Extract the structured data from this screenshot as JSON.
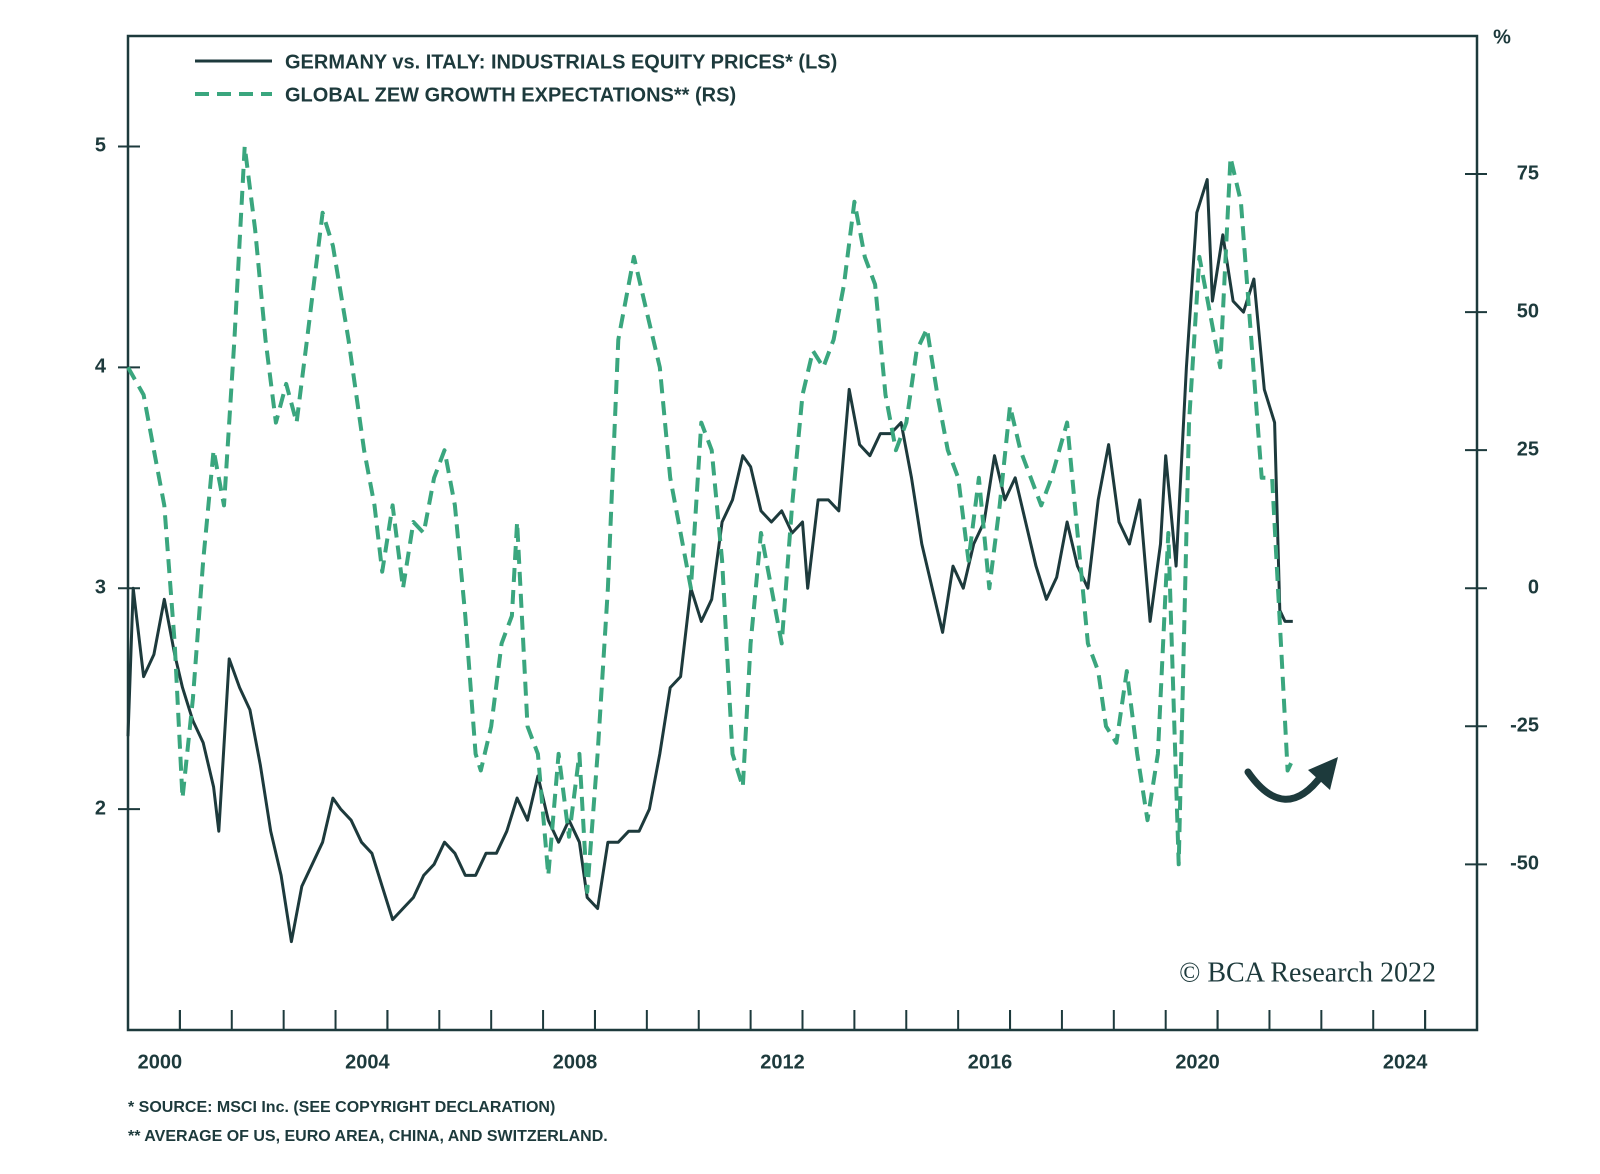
{
  "chart_data": {
    "type": "line",
    "y2label": "%",
    "legend_position": "upper left",
    "series": [
      {
        "name": "GERMANY vs. ITALY: INDUSTRIALS EQUITY PRICES* (LS)",
        "color": "#1d3a3c",
        "style": "solid",
        "axis": "y",
        "x": [
          1999.0,
          1999.1,
          1999.3,
          1999.5,
          1999.7,
          1999.9,
          2000.05,
          2000.25,
          2000.45,
          2000.65,
          2000.75,
          2000.95,
          2001.15,
          2001.35,
          2001.55,
          2001.75,
          2001.95,
          2002.15,
          2002.35,
          2002.55,
          2002.75,
          2002.95,
          2003.1,
          2003.3,
          2003.5,
          2003.7,
          2003.9,
          2004.1,
          2004.3,
          2004.5,
          2004.7,
          2004.9,
          2005.1,
          2005.3,
          2005.5,
          2005.7,
          2005.9,
          2006.1,
          2006.3,
          2006.5,
          2006.7,
          2006.9,
          2007.1,
          2007.3,
          2007.5,
          2007.7,
          2007.85,
          2008.05,
          2008.25,
          2008.45,
          2008.65,
          2008.85,
          2009.05,
          2009.25,
          2009.45,
          2009.65,
          2009.85,
          2010.05,
          2010.25,
          2010.45,
          2010.65,
          2010.85,
          2011.0,
          2011.2,
          2011.4,
          2011.6,
          2011.8,
          2012.0,
          2012.1,
          2012.3,
          2012.5,
          2012.7,
          2012.9,
          2013.1,
          2013.3,
          2013.5,
          2013.7,
          2013.9,
          2014.1,
          2014.3,
          2014.5,
          2014.7,
          2014.9,
          2015.1,
          2015.3,
          2015.5,
          2015.7,
          2015.9,
          2016.1,
          2016.3,
          2016.5,
          2016.7,
          2016.9,
          2017.1,
          2017.3,
          2017.5,
          2017.7,
          2017.9,
          2018.1,
          2018.3,
          2018.5,
          2018.7,
          2018.9,
          2019.0,
          2019.2,
          2019.4,
          2019.6,
          2019.8,
          2019.9,
          2020.1,
          2020.3,
          2020.5,
          2020.7,
          2020.9,
          2021.1,
          2021.2,
          2021.3,
          2021.45
        ],
        "values": [
          2.33,
          3.0,
          2.6,
          2.7,
          2.95,
          2.7,
          2.55,
          2.4,
          2.3,
          2.1,
          1.9,
          2.68,
          2.55,
          2.45,
          2.2,
          1.9,
          1.7,
          1.4,
          1.65,
          1.75,
          1.85,
          2.05,
          2.0,
          1.95,
          1.85,
          1.8,
          1.65,
          1.5,
          1.55,
          1.6,
          1.7,
          1.75,
          1.85,
          1.8,
          1.7,
          1.7,
          1.8,
          1.8,
          1.9,
          2.05,
          1.95,
          2.15,
          1.95,
          1.85,
          1.95,
          1.85,
          1.6,
          1.55,
          1.85,
          1.85,
          1.9,
          1.9,
          2.0,
          2.25,
          2.55,
          2.6,
          3.0,
          2.85,
          2.95,
          3.3,
          3.4,
          3.6,
          3.55,
          3.35,
          3.3,
          3.35,
          3.25,
          3.3,
          3.0,
          3.4,
          3.4,
          3.35,
          3.9,
          3.65,
          3.6,
          3.7,
          3.7,
          3.75,
          3.5,
          3.2,
          3.0,
          2.8,
          3.1,
          3.0,
          3.2,
          3.3,
          3.6,
          3.4,
          3.5,
          3.3,
          3.1,
          2.95,
          3.05,
          3.3,
          3.1,
          3.0,
          3.4,
          3.65,
          3.3,
          3.2,
          3.4,
          2.85,
          3.2,
          3.6,
          3.1,
          4.0,
          4.7,
          4.85,
          4.3,
          4.6,
          4.3,
          4.25,
          4.4,
          3.9,
          3.75,
          2.9,
          2.85,
          2.85
        ]
      },
      {
        "name": "GLOBAL ZEW GROWTH EXPECTATIONS** (RS)",
        "color": "#3aa67e",
        "style": "dashed",
        "axis": "y2",
        "x": [
          1999.0,
          1999.3,
          1999.5,
          1999.7,
          1999.9,
          2000.05,
          2000.25,
          2000.45,
          2000.65,
          2000.85,
          2001.05,
          2001.25,
          2001.45,
          2001.65,
          2001.85,
          2002.05,
          2002.25,
          2002.45,
          2002.75,
          2002.95,
          2003.25,
          2003.55,
          2003.75,
          2003.9,
          2004.1,
          2004.3,
          2004.5,
          2004.7,
          2004.9,
          2005.1,
          2005.3,
          2005.5,
          2005.7,
          2005.8,
          2006.0,
          2006.2,
          2006.4,
          2006.5,
          2006.7,
          2006.9,
          2007.1,
          2007.3,
          2007.5,
          2007.7,
          2007.85,
          2008.05,
          2008.25,
          2008.45,
          2008.75,
          2009.05,
          2009.25,
          2009.45,
          2009.65,
          2009.85,
          2010.05,
          2010.25,
          2010.45,
          2010.65,
          2010.85,
          2011.0,
          2011.2,
          2011.4,
          2011.6,
          2011.8,
          2012.0,
          2012.2,
          2012.4,
          2012.6,
          2012.8,
          2013.0,
          2013.2,
          2013.4,
          2013.6,
          2013.8,
          2014.0,
          2014.2,
          2014.4,
          2014.6,
          2014.8,
          2015.0,
          2015.2,
          2015.4,
          2015.6,
          2015.8,
          2016.0,
          2016.2,
          2016.4,
          2016.6,
          2016.8,
          2017.1,
          2017.3,
          2017.5,
          2017.7,
          2017.85,
          2018.05,
          2018.25,
          2018.45,
          2018.65,
          2018.85,
          2019.05,
          2019.25,
          2019.45,
          2019.65,
          2019.85,
          2020.05,
          2020.25,
          2020.45,
          2020.65,
          2020.85,
          2021.05,
          2021.25,
          2021.35,
          2021.45
        ],
        "values": [
          40,
          35,
          25,
          15,
          -10,
          -38,
          -20,
          5,
          25,
          15,
          45,
          80,
          65,
          45,
          30,
          37,
          30,
          45,
          68,
          62,
          45,
          25,
          15,
          3,
          15,
          0,
          12,
          10,
          20,
          25,
          15,
          -5,
          -30,
          -33,
          -25,
          -10,
          -5,
          12,
          -25,
          -30,
          -52,
          -30,
          -45,
          -30,
          -55,
          -30,
          0,
          45,
          60,
          48,
          40,
          20,
          10,
          0,
          30,
          25,
          5,
          -30,
          -36,
          -10,
          10,
          0,
          -10,
          15,
          35,
          43,
          40,
          45,
          55,
          70,
          60,
          55,
          35,
          25,
          30,
          43,
          47,
          35,
          25,
          20,
          5,
          20,
          0,
          15,
          33,
          25,
          20,
          15,
          20,
          30,
          10,
          -10,
          -15,
          -25,
          -28,
          -15,
          -30,
          -42,
          -30,
          10,
          -50,
          30,
          60,
          50,
          40,
          78,
          70,
          45,
          20,
          20,
          -15,
          -33,
          -31
        ]
      }
    ],
    "xlim": [
      1999,
      2025
    ],
    "xticks": [
      2000,
      2004,
      2008,
      2012,
      2016,
      2020,
      2024
    ],
    "xminorticks": [
      2000,
      2001,
      2002,
      2003,
      2004,
      2005,
      2006,
      2007,
      2008,
      2009,
      2010,
      2011,
      2012,
      2013,
      2014,
      2015,
      2016,
      2017,
      2018,
      2019,
      2020,
      2021,
      2022,
      2023,
      2024
    ],
    "ylim": [
      1,
      5.5
    ],
    "yticks": [
      2,
      3,
      4,
      5
    ],
    "y2lim": [
      -80,
      100
    ],
    "y2ticks": [
      -50,
      -25,
      0,
      25,
      50,
      75
    ],
    "grid": false,
    "copyright": "© BCA Research 2022",
    "footnotes": [
      "*  SOURCE: MSCI Inc. (SEE COPYRIGHT DECLARATION)",
      "**  AVERAGE OF US, EURO AREA, CHINA, AND SWITZERLAND."
    ]
  }
}
